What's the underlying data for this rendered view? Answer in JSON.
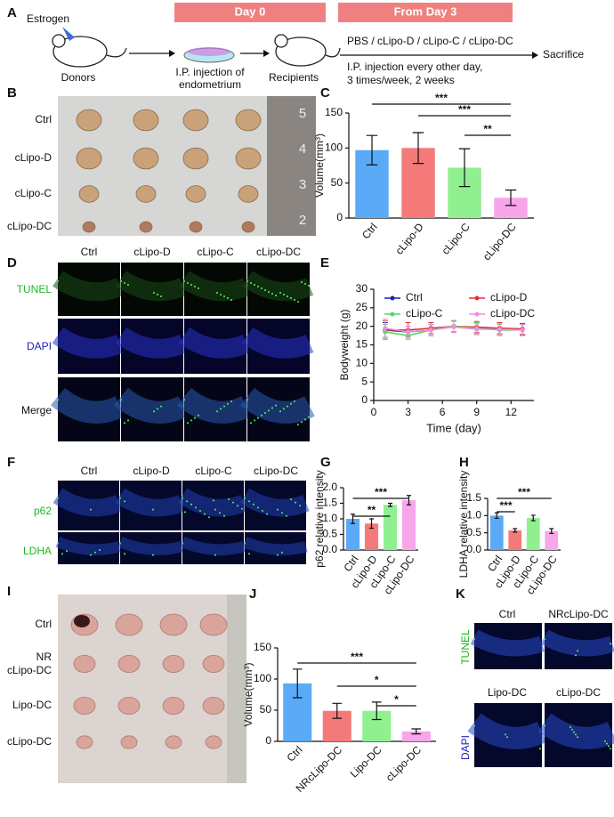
{
  "panel_letters": [
    "A",
    "B",
    "C",
    "D",
    "E",
    "F",
    "G",
    "H",
    "I",
    "J",
    "K"
  ],
  "schematic": {
    "day0": "Day 0",
    "from_day3": "From Day 3",
    "estrogen": "Estrogen",
    "donors": "Donors",
    "injection": [
      "I.P. injection of",
      "endometrium"
    ],
    "recipients": "Recipients",
    "treatments": "PBS / cLipo-D / cLipo-C / cLipo-DC",
    "schedule": [
      "I.P. injection every other day,",
      "3 times/week, 2 weeks"
    ],
    "sacrifice": "Sacrifice"
  },
  "panel_b": {
    "rows": [
      "Ctrl",
      "cLipo-D",
      "cLipo-C",
      "cLipo-DC"
    ],
    "ruler": [
      5,
      4,
      3,
      2
    ]
  },
  "panel_d": {
    "columns": [
      "Ctrl",
      "cLipo-D",
      "cLipo-C",
      "cLipo-DC"
    ],
    "rows": [
      "TUNEL",
      "DAPI",
      "Merge"
    ]
  },
  "panel_f": {
    "columns": [
      "Ctrl",
      "cLipo-D",
      "cLipo-C",
      "cLipo-DC"
    ],
    "rows": [
      "p62",
      "LDHA"
    ]
  },
  "panel_i": {
    "rows": [
      [
        "Ctrl"
      ],
      [
        "NR",
        "cLipo-DC"
      ],
      [
        "Lipo-DC"
      ],
      [
        "cLipo-DC"
      ]
    ]
  },
  "panel_k": {
    "labels": [
      "Ctrl",
      "NRcLipo-DC",
      "Lipo-DC",
      "cLipo-DC"
    ],
    "channels": [
      "TUNEL",
      "DAPI"
    ]
  },
  "chart_data": [
    {
      "type": "bar",
      "y_label": "Volume(mm³)",
      "categories": [
        "Ctrl",
        "cLipo-D",
        "cLipo-C",
        "cLipo-DC"
      ],
      "values": [
        97,
        100,
        72,
        29
      ],
      "errors": [
        21,
        22,
        27,
        11
      ],
      "colors": [
        "#5aaaf7",
        "#f47a7a",
        "#90f090",
        "#f7a6ea"
      ],
      "ylim": [
        0,
        150
      ],
      "yticks": [
        0,
        50,
        100,
        150
      ],
      "annotations": [
        {
          "text": "***",
          "between": [
            "Ctrl",
            "cLipo-DC"
          ]
        },
        {
          "text": "***",
          "between": [
            "cLipo-D",
            "cLipo-DC"
          ]
        },
        {
          "text": "**",
          "between": [
            "cLipo-C",
            "cLipo-DC"
          ]
        }
      ]
    },
    {
      "type": "line",
      "x_label": "Time (day)",
      "y_label": "Bodyweight (g)",
      "x": [
        1,
        3,
        5,
        7,
        9,
        11,
        13
      ],
      "xlim": [
        0,
        14
      ],
      "xticks": [
        0,
        3,
        6,
        9,
        12
      ],
      "ylim": [
        0,
        30
      ],
      "yticks": [
        0,
        5,
        10,
        15,
        20,
        25,
        30
      ],
      "series": [
        {
          "name": "Ctrl",
          "color": "#1f1fb4",
          "values": [
            19,
            18.5,
            19,
            20,
            19.5,
            19.5,
            19.2
          ],
          "errors": [
            2,
            1.5,
            1.5,
            1.5,
            1.5,
            1.5,
            1.5
          ]
        },
        {
          "name": "cLipo-D",
          "color": "#e0303a",
          "values": [
            19,
            19,
            19.5,
            20,
            19.8,
            19.5,
            19.3
          ],
          "errors": [
            2.5,
            2,
            1.5,
            1.5,
            1.5,
            1.5,
            1.5
          ]
        },
        {
          "name": "cLipo-C",
          "color": "#5ed25e",
          "values": [
            18.5,
            17.5,
            19,
            20,
            19.5,
            19,
            19
          ],
          "errors": [
            2,
            1,
            1.5,
            1.5,
            1.5,
            1.5,
            1.5
          ]
        },
        {
          "name": "cLipo-DC",
          "color": "#f08ee0",
          "values": [
            19.5,
            18.5,
            19,
            19.8,
            19.2,
            19.2,
            19
          ],
          "errors": [
            2.5,
            1.5,
            1.5,
            1.5,
            1.5,
            1.5,
            1.5
          ]
        }
      ]
    },
    {
      "type": "bar",
      "y_label": "p62 relative intensity",
      "categories": [
        "Ctrl",
        "cLipo-D",
        "cLipo-C",
        "cLipo-DC"
      ],
      "values": [
        1.0,
        0.85,
        1.45,
        1.6
      ],
      "errors": [
        0.15,
        0.15,
        0.05,
        0.15
      ],
      "colors": [
        "#5aaaf7",
        "#f47a7a",
        "#90f090",
        "#f7a6ea"
      ],
      "ylim": [
        0,
        2
      ],
      "yticks": [
        {
          "value": 0,
          "label": "0.0"
        },
        {
          "value": 0.5,
          "label": "0.5"
        },
        {
          "value": 1,
          "label": "1.0"
        },
        {
          "value": 1.5,
          "label": "1.5"
        },
        {
          "value": 2,
          "label": "2.0"
        }
      ],
      "annotations": [
        {
          "text": "***",
          "between": [
            "Ctrl",
            "cLipo-DC"
          ]
        },
        {
          "text": "**",
          "between": [
            "Ctrl",
            "cLipo-C"
          ]
        }
      ]
    },
    {
      "type": "bar",
      "y_label": "LDHA relative intensity",
      "categories": [
        "Ctrl",
        "cLipo-D",
        "cLipo-C",
        "cLipo-DC"
      ],
      "values": [
        1.0,
        0.57,
        0.93,
        0.55
      ],
      "errors": [
        0.08,
        0.05,
        0.08,
        0.07
      ],
      "colors": [
        "#5aaaf7",
        "#f47a7a",
        "#90f090",
        "#f7a6ea"
      ],
      "ylim": [
        0,
        1.5
      ],
      "yticks": [
        {
          "value": 0,
          "label": "0.0"
        },
        {
          "value": 0.5,
          "label": "0.5"
        },
        {
          "value": 1,
          "label": "1.0"
        },
        {
          "value": 1.5,
          "label": "1.5"
        }
      ],
      "annotations": [
        {
          "text": "***",
          "between": [
            "Ctrl",
            "cLipo-DC"
          ]
        },
        {
          "text": "***",
          "between": [
            "Ctrl",
            "cLipo-D"
          ]
        }
      ]
    },
    {
      "type": "bar",
      "y_label": "Volume(mm³)",
      "categories": [
        "Ctrl",
        "NRcLipo-DC",
        "Lipo-DC",
        "cLipo-DC"
      ],
      "values": [
        93,
        49,
        49,
        16
      ],
      "errors": [
        23,
        12,
        14,
        4
      ],
      "colors": [
        "#5aaaf7",
        "#f47a7a",
        "#90f090",
        "#f7a6ea"
      ],
      "ylim": [
        0,
        150
      ],
      "yticks": [
        0,
        50,
        100,
        150
      ],
      "annotations": [
        {
          "text": "***",
          "between": [
            "Ctrl",
            "cLipo-DC"
          ]
        },
        {
          "text": "*",
          "between": [
            "NRcLipo-DC",
            "cLipo-DC"
          ]
        },
        {
          "text": "*",
          "between": [
            "Lipo-DC",
            "cLipo-DC"
          ]
        }
      ]
    }
  ]
}
